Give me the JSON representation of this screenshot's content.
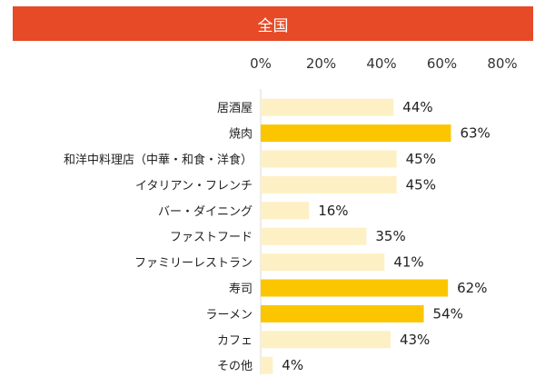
{
  "header": {
    "title": "全国"
  },
  "colors": {
    "header": "#e64a26",
    "bar_normal": "#fdf0c4",
    "bar_highlight": "#fbc600"
  },
  "chart_data": {
    "type": "bar",
    "orientation": "horizontal",
    "title": "全国",
    "categories": [
      "居酒屋",
      "焼肉",
      "和洋中料理店（中華・和食・洋食）",
      "イタリアン・フレンチ",
      "バー・ダイニング",
      "ファストフード",
      "ファミリーレストラン",
      "寿司",
      "ラーメン",
      "カフェ",
      "その他"
    ],
    "values": [
      44,
      63,
      45,
      45,
      16,
      35,
      41,
      62,
      54,
      43,
      4
    ],
    "value_labels": [
      "44%",
      "63%",
      "45%",
      "45%",
      "16%",
      "35%",
      "41%",
      "62%",
      "54%",
      "43%",
      "4%"
    ],
    "highlighted": [
      false,
      true,
      false,
      false,
      false,
      false,
      false,
      true,
      true,
      false,
      false
    ],
    "xticks": [
      "0%",
      "20%",
      "40%",
      "60%",
      "80%"
    ],
    "xlim": [
      0,
      80
    ],
    "axis_position": "top",
    "grid": false,
    "legend": "none"
  }
}
